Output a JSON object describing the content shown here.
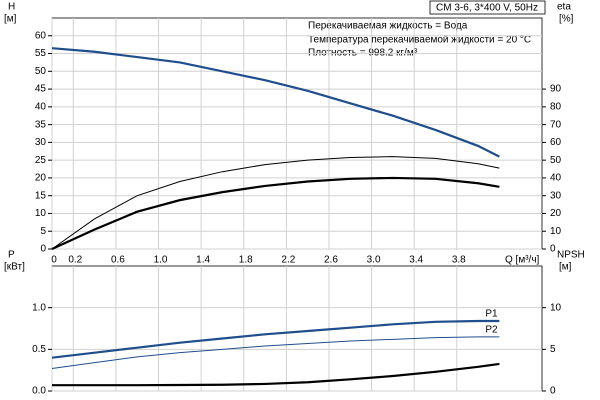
{
  "chart_data": [
    {
      "type": "line",
      "model": "CM 3-6, 3*400 V, 50Hz",
      "annotations": [
        "Перекачиваемая жидкость = Вода",
        "Температура перекачиваемой жидкости = 20 °C",
        "Плотность = 998.2 кг/м³"
      ],
      "ylabel": "H",
      "yunit": "[м]",
      "y2label": "eta",
      "y2unit": "[%]",
      "xlabel": "Q [м³/ч]",
      "xlim": [
        0,
        4.6
      ],
      "ylim": [
        0,
        65
      ],
      "y2lim": [
        0,
        130
      ],
      "xticks": [
        0,
        0.2,
        0.6,
        {
          "value": 1,
          "label": "1.0"
        },
        1.4,
        1.8,
        2.2,
        2.6,
        {
          "value": 3,
          "label": "3.0"
        },
        3.4,
        3.8
      ],
      "yticks": [
        0,
        5,
        10,
        15,
        20,
        25,
        30,
        35,
        40,
        45,
        50,
        55,
        60
      ],
      "y2ticks": [
        0,
        10,
        20,
        30,
        40,
        50,
        60,
        70,
        80,
        90
      ],
      "x_tick_labels": true,
      "grid": true,
      "series": [
        {
          "color": "#1f4e8c",
          "style": "thick",
          "x": [
            0,
            0.4,
            0.8,
            1.2,
            1.6,
            2.0,
            2.4,
            2.8,
            3.2,
            3.6,
            4.0,
            4.2
          ],
          "values": [
            56.5,
            55.5,
            54,
            52.5,
            50,
            47.5,
            44.5,
            41,
            37.5,
            33.5,
            29,
            26
          ]
        },
        {
          "color": "#000000",
          "style": "thin",
          "axis": "y2",
          "x": [
            0,
            0.4,
            0.8,
            1.2,
            1.6,
            2.0,
            2.4,
            2.8,
            3.2,
            3.6,
            4.0,
            4.2
          ],
          "values": [
            0,
            17,
            30,
            38,
            43.5,
            47.5,
            50,
            51.5,
            52,
            51,
            48,
            45.5
          ]
        },
        {
          "color": "#000000",
          "style": "thick",
          "axis": "y2",
          "x": [
            0,
            0.4,
            0.8,
            1.2,
            1.6,
            2.0,
            2.4,
            2.8,
            3.2,
            3.6,
            4.0,
            4.2
          ],
          "values": [
            0,
            11,
            21,
            27.5,
            32,
            35.5,
            38,
            39.5,
            40,
            39.5,
            37,
            35
          ]
        }
      ]
    },
    {
      "type": "line",
      "ylabel": "P",
      "yunit": "[кВт]",
      "y2label": "NPSH",
      "y2unit": "[м]",
      "xlim": [
        0,
        4.6
      ],
      "ylim": [
        0,
        1.5
      ],
      "y2lim": [
        0,
        15
      ],
      "xticks": [
        0,
        0.2,
        0.6,
        1,
        1.4,
        1.8,
        2.2,
        2.6,
        3,
        3.4,
        3.8
      ],
      "yticks": [
        {
          "value": 0,
          "label": "0.0"
        },
        0.5,
        {
          "value": 1,
          "label": "1.0"
        }
      ],
      "y2ticks": [
        0,
        5,
        10
      ],
      "x_tick_labels": false,
      "grid": true,
      "series": [
        {
          "name": "P1",
          "color": "#1f4e8c",
          "style": "thick",
          "x": [
            0,
            0.4,
            0.8,
            1.2,
            1.6,
            2.0,
            2.4,
            2.8,
            3.2,
            3.6,
            4.0,
            4.2
          ],
          "values": [
            0.4,
            0.46,
            0.52,
            0.58,
            0.63,
            0.68,
            0.72,
            0.76,
            0.8,
            0.83,
            0.84,
            0.84
          ]
        },
        {
          "name": "P2",
          "color": "#1f4e8c",
          "style": "thin",
          "x": [
            0,
            0.4,
            0.8,
            1.2,
            1.6,
            2.0,
            2.4,
            2.8,
            3.2,
            3.6,
            4.0,
            4.2
          ],
          "values": [
            0.27,
            0.34,
            0.41,
            0.46,
            0.5,
            0.54,
            0.57,
            0.6,
            0.62,
            0.64,
            0.65,
            0.65
          ]
        },
        {
          "color": "#000000",
          "style": "thick",
          "axis": "y2",
          "x": [
            0,
            0.4,
            0.8,
            1.2,
            1.6,
            2.0,
            2.4,
            2.8,
            3.2,
            3.6,
            4.0,
            4.2
          ],
          "values": [
            0.7,
            0.7,
            0.7,
            0.72,
            0.75,
            0.85,
            1.05,
            1.4,
            1.8,
            2.3,
            2.9,
            3.25
          ]
        }
      ]
    }
  ]
}
